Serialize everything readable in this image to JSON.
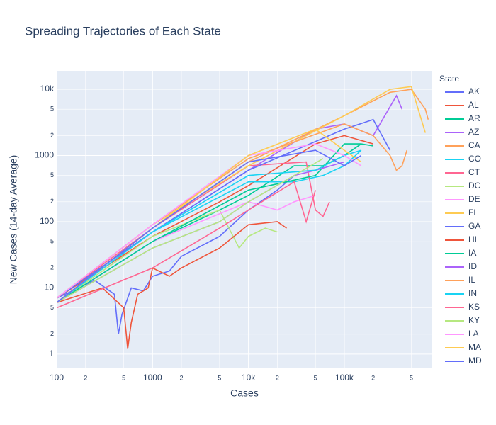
{
  "chart_data": {
    "type": "line",
    "title": "Spreading Trajectories of Each State",
    "x_label": "Cases",
    "y_label": "New Cases (14-day Average)",
    "legend_title": "State",
    "xscale": "log",
    "yscale": "log",
    "grid": true,
    "legend": "right",
    "xlim": [
      100,
      826000
    ],
    "ylim": [
      0.61,
      19000
    ],
    "xticks": [
      100,
      {
        "value": 200,
        "label": "2"
      },
      {
        "value": 500,
        "label": "5"
      },
      1000,
      {
        "value": 2000,
        "label": "2"
      },
      {
        "value": 5000,
        "label": "5"
      },
      {
        "value": 10000,
        "label": "10k"
      },
      {
        "value": 20000,
        "label": "2"
      },
      {
        "value": 50000,
        "label": "5"
      },
      {
        "value": 100000,
        "label": "100k"
      },
      {
        "value": 200000,
        "label": "2"
      },
      {
        "value": 500000,
        "label": "5"
      }
    ],
    "yticks": [
      1,
      {
        "value": 2,
        "label": "2"
      },
      {
        "value": 5,
        "label": "5"
      },
      10,
      {
        "value": 20,
        "label": "2"
      },
      {
        "value": 50,
        "label": "5"
      },
      100,
      {
        "value": 200,
        "label": "2"
      },
      {
        "value": 500,
        "label": "5"
      },
      1000,
      {
        "value": 2000,
        "label": "2"
      },
      {
        "value": 5000,
        "label": "5"
      },
      {
        "value": 10000,
        "label": "10k"
      }
    ],
    "series": [
      {
        "name": "AK",
        "color": "#636efa",
        "x": [
          100,
          250,
          400,
          440,
          480,
          600,
          800,
          1000,
          1500,
          2000,
          5000,
          10000,
          20000,
          30000
        ],
        "values": [
          7,
          13,
          8,
          2,
          4,
          10,
          9,
          15,
          18,
          30,
          60,
          150,
          300,
          500
        ]
      },
      {
        "name": "AL",
        "color": "#EF553B",
        "x": [
          100,
          1000,
          5000,
          10000,
          50000,
          100000,
          200000
        ],
        "values": [
          7,
          60,
          200,
          350,
          1500,
          2000,
          1500
        ]
      },
      {
        "name": "AR",
        "color": "#00cc96",
        "x": [
          100,
          1000,
          5000,
          10000,
          30000,
          60000,
          100000,
          150000,
          200000
        ],
        "values": [
          6,
          50,
          150,
          250,
          700,
          700,
          1000,
          1500,
          1400
        ]
      },
      {
        "name": "AZ",
        "color": "#ab63fa",
        "x": [
          100,
          1000,
          10000,
          50000,
          100000,
          200000,
          350000,
          400000
        ],
        "values": [
          7,
          70,
          600,
          2500,
          3000,
          2000,
          8000,
          5000
        ]
      },
      {
        "name": "CA",
        "color": "#FFA15A",
        "x": [
          100,
          1000,
          10000,
          100000,
          300000,
          500000,
          700000,
          750000
        ],
        "values": [
          6,
          80,
          800,
          4000,
          9000,
          10000,
          5000,
          3500
        ]
      },
      {
        "name": "CO",
        "color": "#19d3f3",
        "x": [
          100,
          1000,
          10000,
          30000,
          60000,
          100000,
          150000
        ],
        "values": [
          7,
          70,
          400,
          400,
          500,
          700,
          1200
        ]
      },
      {
        "name": "CT",
        "color": "#FF6692",
        "x": [
          100,
          1000,
          10000,
          40000,
          50000,
          60000,
          70000
        ],
        "values": [
          7,
          80,
          700,
          800,
          150,
          120,
          200
        ]
      },
      {
        "name": "DC",
        "color": "#B6E880",
        "x": [
          100,
          1000,
          5000,
          8000,
          10000,
          15000,
          20000
        ],
        "values": [
          6,
          60,
          150,
          40,
          60,
          80,
          70
        ]
      },
      {
        "name": "DE",
        "color": "#FF97FF",
        "x": [
          100,
          1000,
          10000,
          20000,
          30000,
          50000
        ],
        "values": [
          6,
          50,
          200,
          150,
          200,
          250
        ]
      },
      {
        "name": "FL",
        "color": "#FECB52",
        "x": [
          100,
          1000,
          10000,
          100000,
          300000,
          500000,
          700000
        ],
        "values": [
          7,
          90,
          700,
          4000,
          10000,
          11000,
          2200
        ]
      },
      {
        "name": "GA",
        "color": "#636efa",
        "x": [
          100,
          1000,
          10000,
          100000,
          200000,
          300000
        ],
        "values": [
          7,
          70,
          600,
          2500,
          3500,
          1200
        ]
      },
      {
        "name": "HI",
        "color": "#EF553B",
        "x": [
          100,
          300,
          500,
          550,
          600,
          700,
          900,
          1000,
          1500,
          2000,
          5000,
          10000,
          20000,
          25000
        ],
        "values": [
          6,
          10,
          5,
          1.2,
          3,
          8,
          10,
          20,
          15,
          20,
          40,
          90,
          100,
          80
        ]
      },
      {
        "name": "IA",
        "color": "#00cc96",
        "x": [
          100,
          1000,
          10000,
          50000,
          100000,
          150000
        ],
        "values": [
          6,
          50,
          300,
          500,
          1500,
          1500
        ]
      },
      {
        "name": "ID",
        "color": "#ab63fa",
        "x": [
          100,
          1000,
          5000,
          10000,
          30000,
          50000,
          100000
        ],
        "values": [
          6,
          40,
          100,
          200,
          500,
          600,
          800
        ]
      },
      {
        "name": "IL",
        "color": "#FFA15A",
        "x": [
          100,
          1000,
          10000,
          100000,
          200000,
          300000,
          350000,
          400000,
          450000
        ],
        "values": [
          7,
          90,
          900,
          3000,
          2000,
          1000,
          600,
          700,
          1200
        ]
      },
      {
        "name": "IN",
        "color": "#19d3f3",
        "x": [
          100,
          1000,
          10000,
          50000,
          100000,
          150000
        ],
        "values": [
          6,
          70,
          500,
          600,
          1000,
          1200
        ]
      },
      {
        "name": "KS",
        "color": "#FF6692",
        "x": [
          100,
          1000,
          5000,
          10000,
          30000,
          40000,
          50000
        ],
        "values": [
          5,
          20,
          80,
          150,
          400,
          100,
          300
        ]
      },
      {
        "name": "KY",
        "color": "#B6E880",
        "x": [
          100,
          1000,
          5000,
          10000,
          30000,
          60000
        ],
        "values": [
          6,
          40,
          100,
          200,
          500,
          900
        ]
      },
      {
        "name": "LA",
        "color": "#FF97FF",
        "x": [
          100,
          1000,
          10000,
          50000,
          100000,
          150000
        ],
        "values": [
          7,
          90,
          1000,
          1500,
          1000,
          700
        ]
      },
      {
        "name": "MA",
        "color": "#FECB52",
        "x": [
          100,
          1000,
          10000,
          50000,
          100000,
          150000
        ],
        "values": [
          6,
          80,
          1000,
          2500,
          1200,
          800
        ]
      },
      {
        "name": "MD",
        "color": "#636efa",
        "x": [
          100,
          1000,
          10000,
          50000,
          100000,
          150000
        ],
        "values": [
          6,
          80,
          800,
          1200,
          700,
          1000
        ]
      }
    ]
  }
}
